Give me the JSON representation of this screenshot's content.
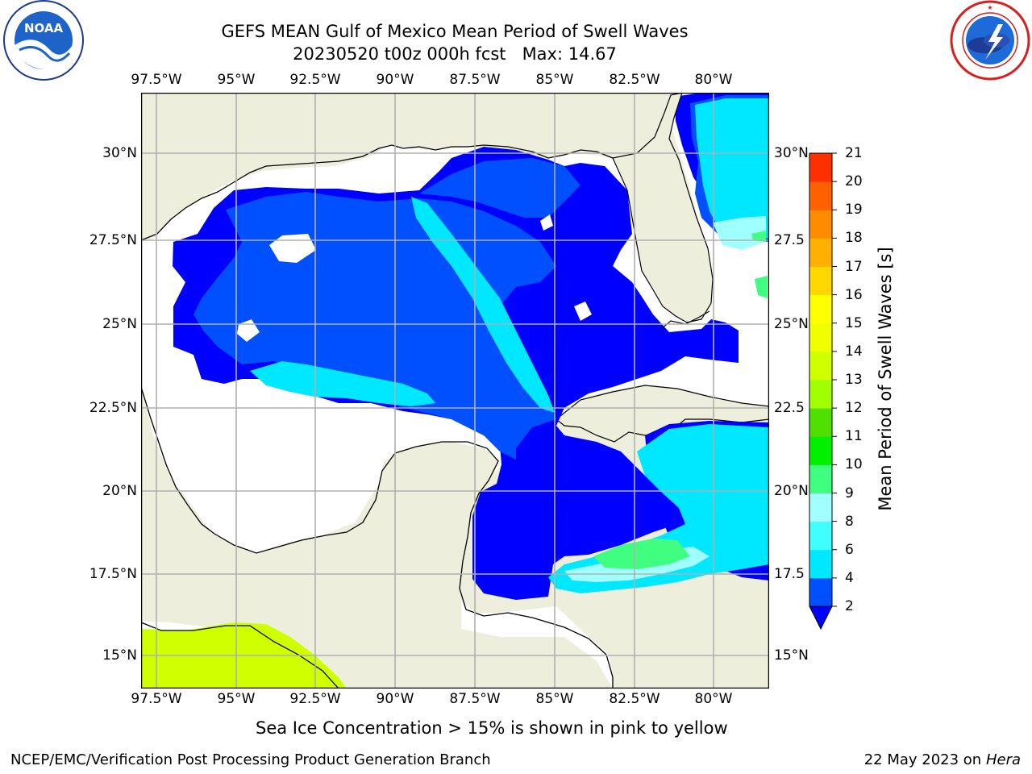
{
  "title": {
    "line1": "GEFS MEAN Gulf of Mexico Mean Period of Swell Waves",
    "line2": "20230520 t00z 000h fcst   Max: 14.67"
  },
  "logos": {
    "left": "NOAA",
    "left_ring": "NATIONAL OCEANIC AND ATMOSPHERIC ADMINISTRATION · U.S. DEPARTMENT OF COMMERCE",
    "right_ring": "NATIONAL WEATHER SERVICE"
  },
  "map": {
    "lon_labels": [
      "97.5°W",
      "95°W",
      "92.5°W",
      "90°W",
      "87.5°W",
      "85°W",
      "82.5°W",
      "80°W"
    ],
    "lat_labels_left": [
      "30°N",
      "27.5°N",
      "25°N",
      "22.5°N",
      "20°N",
      "17.5°N",
      "15°N"
    ],
    "lat_labels_right": [
      "30°N",
      "27.5",
      "25°N",
      "22.5",
      "20°N",
      "17.5",
      "15°N"
    ],
    "colors": {
      "land": "#eeeedc",
      "ocean_no_data": "#ffffff",
      "grid": "#b0b0b0"
    }
  },
  "colorbar": {
    "label": "Mean Period of Swell Waves [s]",
    "ticks": [
      "2",
      "4",
      "6",
      "8",
      "9",
      "10",
      "11",
      "12",
      "13",
      "14",
      "15",
      "16",
      "17",
      "18",
      "19",
      "20",
      "21"
    ],
    "colors": [
      "#0050ff",
      "#00e8ff",
      "#40ffff",
      "#a0ffff",
      "#40ff80",
      "#00f000",
      "#50e000",
      "#a0ff00",
      "#d0ff00",
      "#f0ff00",
      "#ffff00",
      "#ffd800",
      "#ffb000",
      "#ff8c00",
      "#ff6000",
      "#ff3000",
      "#ff0000"
    ],
    "underflow_color": "#0000ff"
  },
  "note": "Sea Ice Concentration > 15% is shown in pink to yellow",
  "footer": {
    "left": "NCEP/EMC/Verification Post Processing Product Generation Branch",
    "right_date": "22 May 2023 on",
    "right_host": "Hera"
  }
}
